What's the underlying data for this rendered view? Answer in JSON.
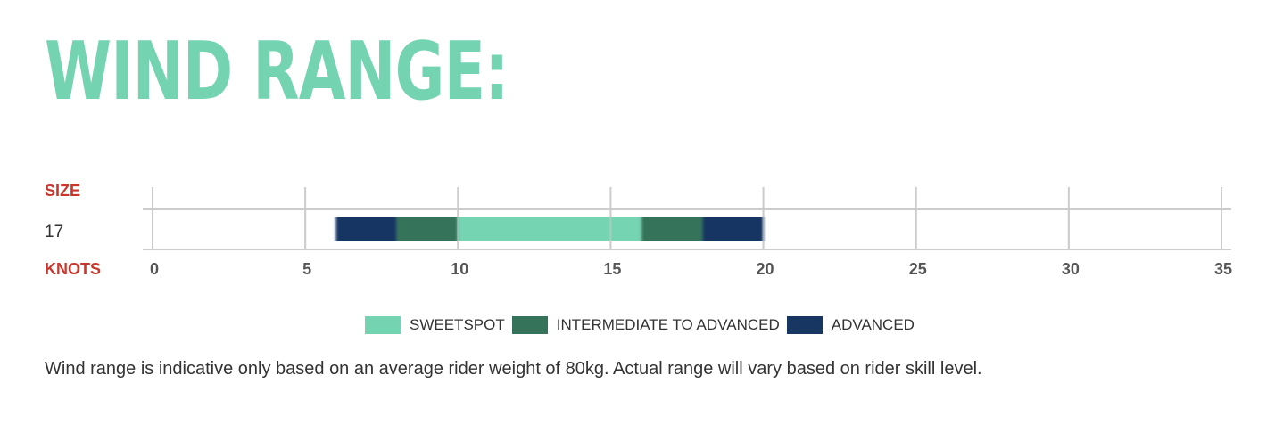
{
  "page": {
    "title": "WIND RANGE:",
    "footnote": "Wind range is indicative only based on an average rider weight of 80kg. Actual range will vary based on rider skill level."
  },
  "colors": {
    "title": "#74d4b2",
    "axis_words": "#c9372c",
    "sweetspot": "#74d4b2",
    "intermediate": "#35735a",
    "advanced": "#173662",
    "grid": "#cccccc"
  },
  "chart_data": {
    "type": "bar",
    "orientation": "horizontal",
    "row_axis_label": "SIZE",
    "value_axis_label": "KNOTS",
    "xlim": [
      0,
      35
    ],
    "x_ticks": [
      0,
      5,
      10,
      15,
      20,
      25,
      30,
      35
    ],
    "rows": [
      {
        "size": "17",
        "segments": [
          {
            "category": "ADVANCED",
            "from": 6,
            "to": 8
          },
          {
            "category": "INTERMEDIATE TO ADVANCED",
            "from": 8,
            "to": 10
          },
          {
            "category": "SWEETSPOT",
            "from": 10,
            "to": 16
          },
          {
            "category": "INTERMEDIATE TO ADVANCED",
            "from": 16,
            "to": 18
          },
          {
            "category": "ADVANCED",
            "from": 18,
            "to": 20
          }
        ]
      }
    ],
    "legend": [
      {
        "label": "SWEETSPOT",
        "color": "#74d4b2"
      },
      {
        "label": "INTERMEDIATE TO ADVANCED",
        "color": "#35735a"
      },
      {
        "label": "ADVANCED",
        "color": "#173662"
      }
    ],
    "grid": true
  }
}
